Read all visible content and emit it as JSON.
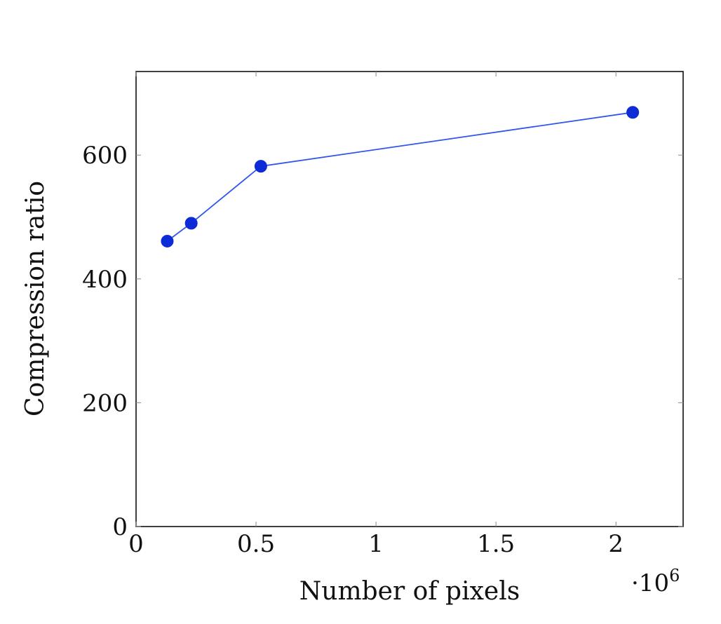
{
  "chart_data": {
    "type": "line",
    "title": "",
    "xlabel": "Number of pixels",
    "ylabel": "Compression ratio",
    "x_multiplier_label": "·10",
    "x_multiplier_exponent": "6",
    "x_scale_factor": 1000000,
    "xlim": [
      0,
      2.28
    ],
    "ylim": [
      0,
      735
    ],
    "x_ticks": [
      0,
      0.5,
      1,
      1.5,
      2
    ],
    "x_tick_labels": [
      "0",
      "0.5",
      "1",
      "1.5",
      "2"
    ],
    "y_ticks": [
      0,
      200,
      400,
      600
    ],
    "y_tick_labels": [
      "0",
      "200",
      "400",
      "600"
    ],
    "grid": false,
    "legend": "none",
    "series": [
      {
        "color": "#0d2bd6",
        "line_color": "#2f55ee",
        "x": [
          0.13,
          0.23,
          0.52,
          2.07
        ],
        "y": [
          461,
          490,
          582,
          669
        ]
      }
    ]
  }
}
